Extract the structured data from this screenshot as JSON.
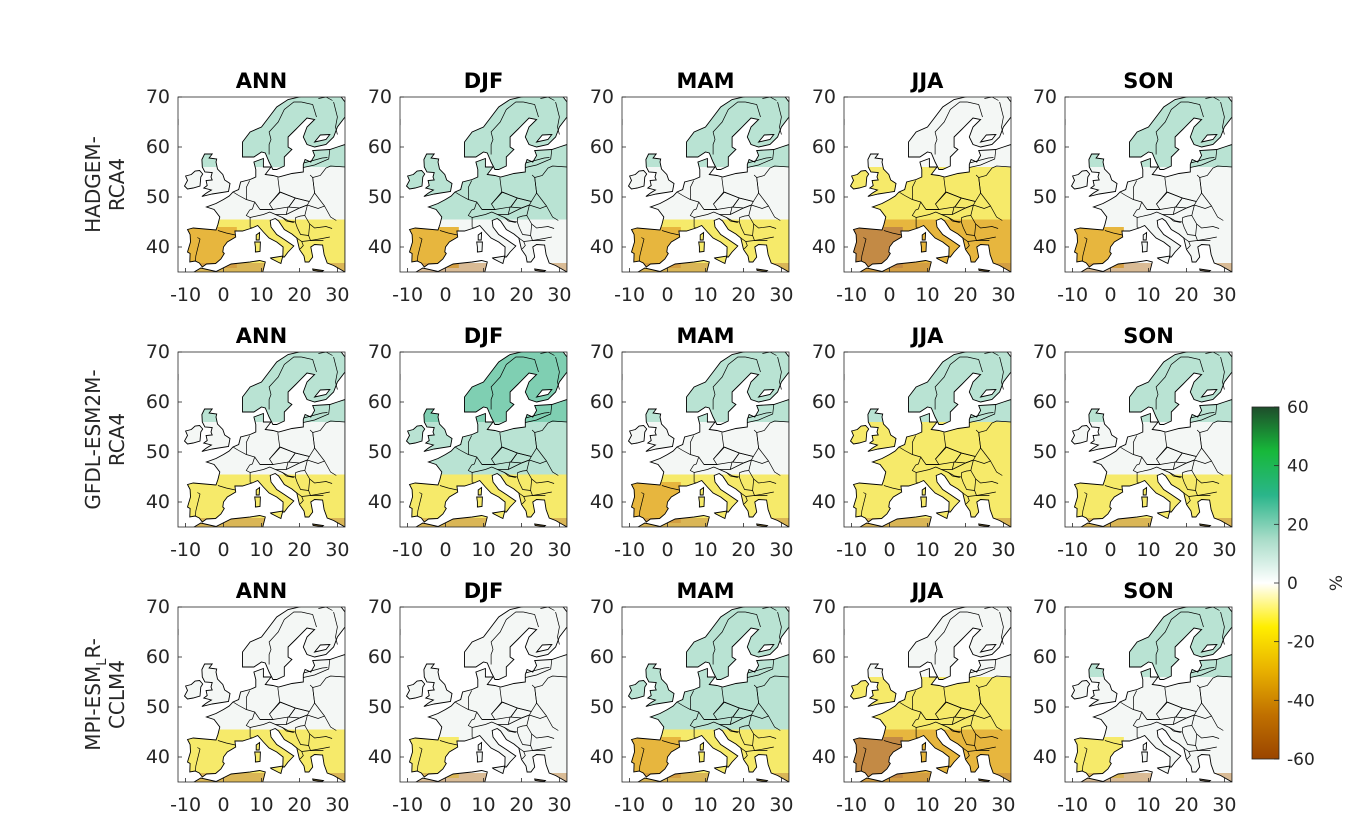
{
  "chart_data": {
    "type": "heatmap",
    "panel_titles": [
      "ANN",
      "DJF",
      "MAM",
      "JJA",
      "SON"
    ],
    "row_labels": [
      {
        "line1": "HADGEM-",
        "line2": "RCA4"
      },
      {
        "line1": "GFDL-ESM2M-",
        "line2": "RCA4"
      },
      {
        "line1": "MPI-ESM",
        "sub": "L",
        "line1_tail": "R-",
        "line2": "CCLM4"
      }
    ],
    "x_ticks": [
      "-10",
      "0",
      "10",
      "20",
      "30"
    ],
    "y_ticks": [
      "70",
      "60",
      "50",
      "40"
    ],
    "xlim": [
      -12,
      32
    ],
    "ylim": [
      35,
      70
    ],
    "colorbar": {
      "label": "%",
      "ticks": [
        "60",
        "40",
        "20",
        "0",
        "-20",
        "-40",
        "-60"
      ],
      "range": [
        -60,
        60
      ],
      "colors": [
        "#9a4500",
        "#c07000",
        "#e8b000",
        "#ffee00",
        "#ffffff",
        "#a8dcc8",
        "#2ab58a",
        "#17b83a",
        "#1e4d2b"
      ]
    },
    "land_colors": {
      "wet_strong": "#7fcfb2",
      "wet": "#b9e3d3",
      "neutral": "#f4f7f5",
      "dry": "#f6ea6a",
      "dry_strong": "#e7b63e",
      "very_dry": "#c38a45"
    },
    "panels": [
      [
        {
          "north": "wet",
          "central": "neutral",
          "south": "dry",
          "iberia": "dry_strong"
        },
        {
          "north": "wet",
          "central": "wet",
          "south": "neutral",
          "iberia": "dry_strong"
        },
        {
          "north": "wet",
          "central": "neutral",
          "south": "dry",
          "iberia": "dry_strong"
        },
        {
          "north": "neutral",
          "central": "dry",
          "south": "dry_strong",
          "iberia": "very_dry"
        },
        {
          "north": "wet",
          "central": "neutral",
          "south": "neutral",
          "iberia": "dry_strong"
        }
      ],
      [
        {
          "north": "wet",
          "central": "neutral",
          "south": "dry",
          "iberia": "dry"
        },
        {
          "north": "wet_strong",
          "central": "wet",
          "south": "dry",
          "iberia": "dry"
        },
        {
          "north": "wet",
          "central": "neutral",
          "south": "dry",
          "iberia": "dry_strong"
        },
        {
          "north": "wet",
          "central": "dry",
          "south": "dry",
          "iberia": "dry"
        },
        {
          "north": "wet",
          "central": "neutral",
          "south": "dry",
          "iberia": "dry"
        }
      ],
      [
        {
          "north": "neutral",
          "central": "neutral",
          "south": "dry",
          "iberia": "dry"
        },
        {
          "north": "neutral",
          "central": "neutral",
          "south": "neutral",
          "iberia": "dry"
        },
        {
          "north": "wet",
          "central": "wet",
          "south": "dry",
          "iberia": "dry_strong"
        },
        {
          "north": "neutral",
          "central": "dry",
          "south": "dry_strong",
          "iberia": "very_dry"
        },
        {
          "north": "wet",
          "central": "neutral",
          "south": "neutral",
          "iberia": "dry"
        }
      ]
    ]
  }
}
